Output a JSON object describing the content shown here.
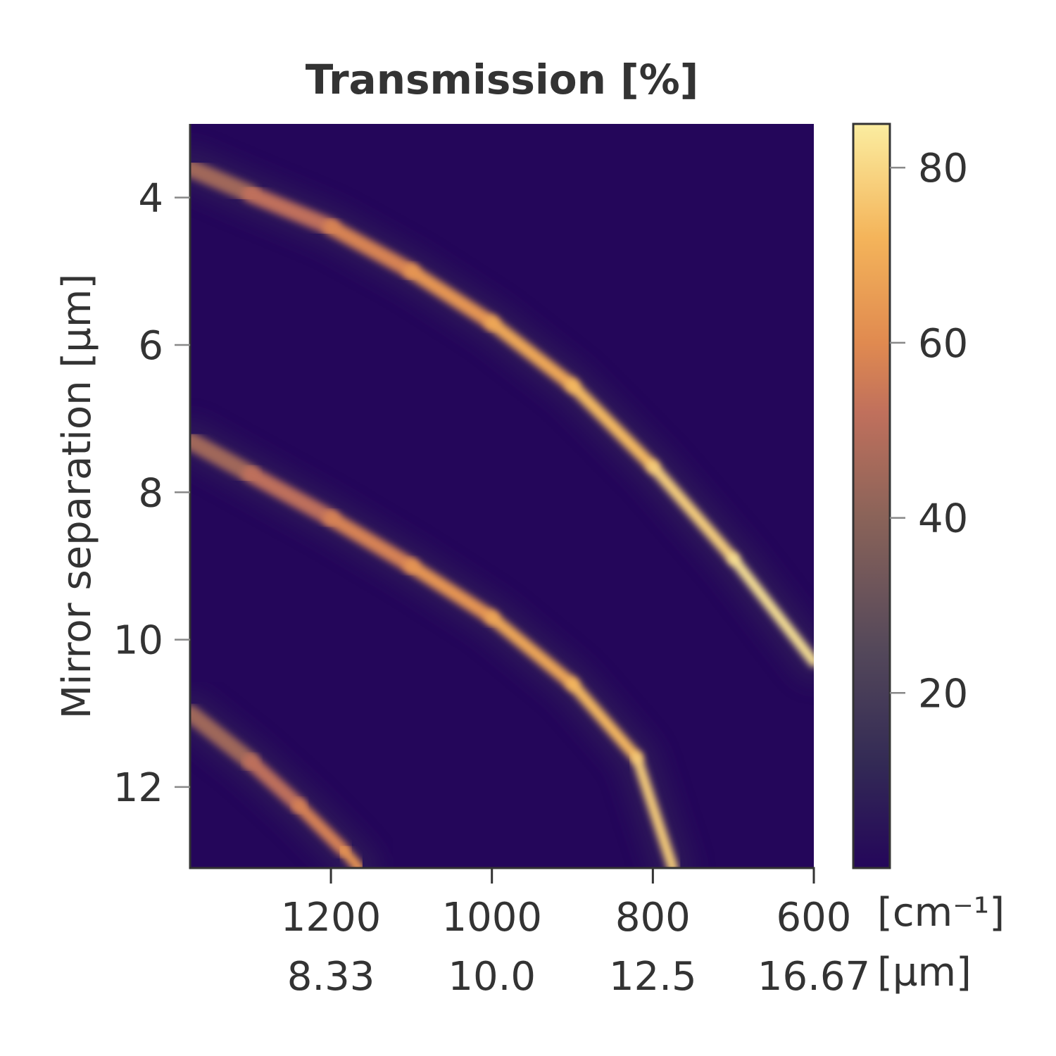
{
  "chart_data": {
    "type": "heatmap",
    "title": "Transmission [%]",
    "ylabel": "Mirror separation [µm]",
    "xlabel_primary_unit": "[cm⁻¹]",
    "xlabel_secondary_unit": "[µm]",
    "x_axis": {
      "quantity": "wavenumber",
      "range": [
        1375,
        600
      ],
      "reversed": true,
      "ticks": [
        1200,
        1000,
        800,
        600
      ],
      "tick_labels": [
        "1200",
        "1000",
        "800",
        "600"
      ],
      "secondary_tick_labels": [
        "8.33",
        "10.0",
        "12.5",
        "16.67"
      ]
    },
    "y_axis": {
      "range": [
        3.0,
        13.1
      ],
      "reversed": true,
      "ticks": [
        4,
        6,
        8,
        10,
        12
      ],
      "tick_labels": [
        "4",
        "6",
        "8",
        "10",
        "12"
      ]
    },
    "colorbar": {
      "colormap": "inferno-like (dark purple to pale yellow)",
      "range": [
        0,
        85
      ],
      "ticks": [
        20,
        40,
        60,
        80
      ],
      "tick_labels": [
        "20",
        "40",
        "60",
        "80"
      ],
      "stops": [
        {
          "v": 0,
          "color": "#24065a"
        },
        {
          "v": 12,
          "color": "#332a55"
        },
        {
          "v": 25,
          "color": "#54485a"
        },
        {
          "v": 40,
          "color": "#8a6359"
        },
        {
          "v": 52,
          "color": "#c0705c"
        },
        {
          "v": 60,
          "color": "#e08a50"
        },
        {
          "v": 72,
          "color": "#f4b45a"
        },
        {
          "v": 85,
          "color": "#fbeda0"
        }
      ]
    },
    "transmission_bands": [
      {
        "order": 1,
        "peak_range": [
          40,
          85
        ],
        "points": [
          [
            1375,
            3.6
          ],
          [
            1300,
            3.95
          ],
          [
            1200,
            4.4
          ],
          [
            1100,
            5.0
          ],
          [
            1000,
            5.7
          ],
          [
            900,
            6.55
          ],
          [
            800,
            7.65
          ],
          [
            700,
            8.9
          ],
          [
            600,
            10.3
          ]
        ]
      },
      {
        "order": 2,
        "peak_range": [
          40,
          80
        ],
        "points": [
          [
            1375,
            7.3
          ],
          [
            1300,
            7.75
          ],
          [
            1200,
            8.35
          ],
          [
            1100,
            9.0
          ],
          [
            1000,
            9.7
          ],
          [
            900,
            10.6
          ],
          [
            820,
            11.6
          ],
          [
            775,
            13.1
          ]
        ]
      },
      {
        "order": 3,
        "peak_range": [
          40,
          65
        ],
        "points": [
          [
            1375,
            11.0
          ],
          [
            1300,
            11.65
          ],
          [
            1240,
            12.25
          ],
          [
            1185,
            12.85
          ],
          [
            1165,
            13.1
          ]
        ]
      }
    ]
  }
}
